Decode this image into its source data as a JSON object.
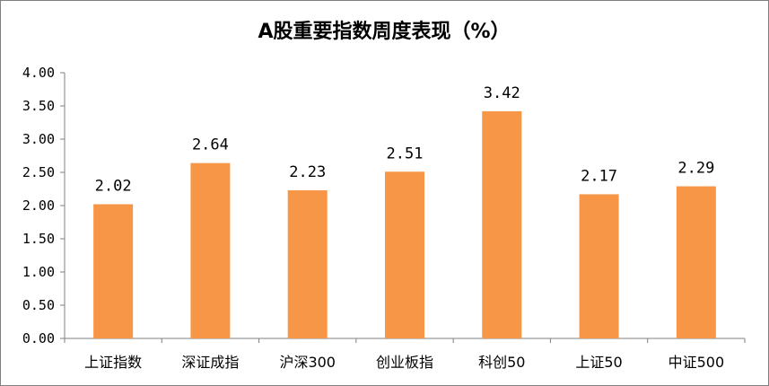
{
  "chart_data": {
    "type": "bar",
    "title": "A股重要指数周度表现（%）",
    "categories": [
      "上证指数",
      "深证成指",
      "沪深300",
      "创业板指",
      "科创50",
      "上证50",
      "中证500"
    ],
    "values": [
      2.02,
      2.64,
      2.23,
      2.51,
      3.42,
      2.17,
      2.29
    ],
    "data_labels": [
      "2.02",
      "2.64",
      "2.23",
      "2.51",
      "3.42",
      "2.17",
      "2.29"
    ],
    "y_ticks": [
      "0.00",
      "0.50",
      "1.00",
      "1.50",
      "2.00",
      "2.50",
      "3.00",
      "3.50",
      "4.00"
    ],
    "ylim": [
      0,
      4
    ],
    "bar_color": "#F79646",
    "axis_color": "#808080",
    "grid": false,
    "legend": "none"
  }
}
